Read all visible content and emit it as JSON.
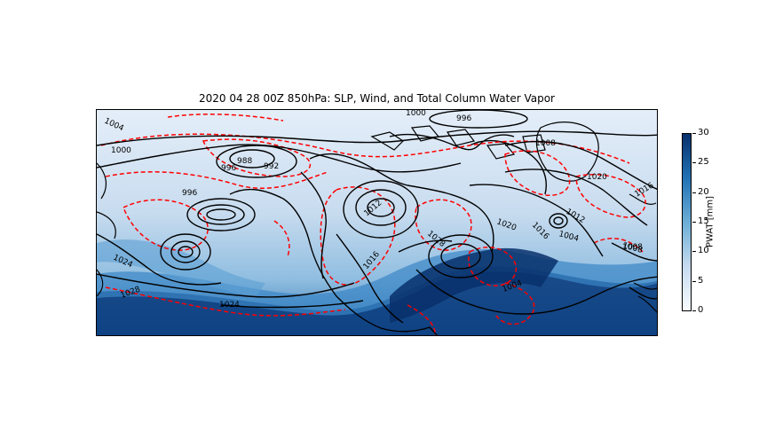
{
  "title": "2020 04 28 00Z 850hPa: SLP, Wind, and Total Column Water Vapor",
  "colorbar": {
    "label": "PWAT [mm]",
    "ticks": [
      "0",
      "5",
      "10",
      "15",
      "20",
      "25",
      "30"
    ],
    "range": [
      0,
      30
    ],
    "cmap": "Blues",
    "colors": [
      "#f7fbff",
      "#c6dbef",
      "#6baed6",
      "#2171b5",
      "#08306b"
    ]
  },
  "contours": {
    "slp_color": "#000000",
    "wind_color": "#ff0000",
    "wind_style": "dashed",
    "labels": [
      "1004",
      "1000",
      "996",
      "988",
      "992",
      "996",
      "1000",
      "996",
      "1008",
      "1020",
      "1012",
      "1016",
      "1020",
      "1004",
      "1008",
      "1024",
      "1028",
      "1024",
      "1012",
      "1028",
      "1016",
      "1004",
      "1008",
      "1016"
    ]
  }
}
